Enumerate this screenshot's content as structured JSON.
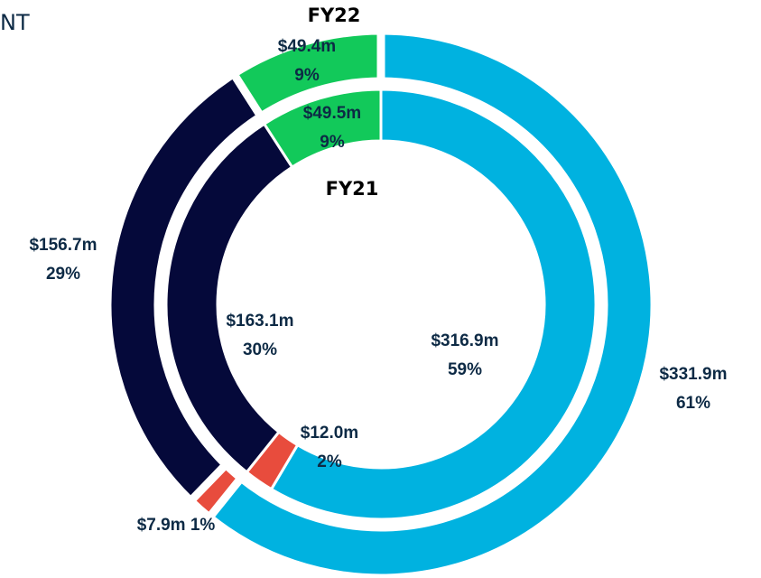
{
  "chart_data": {
    "type": "donut",
    "title": "NT",
    "colors": [
      "#00b2e0",
      "#e84c3d",
      "#05093a",
      "#12c95a"
    ],
    "series": [
      {
        "name": "FY22",
        "values": [
          331.9,
          7.9,
          156.7,
          49.4
        ],
        "value_labels": [
          "$331.9m",
          "$7.9m",
          "$156.7m",
          "$49.4m"
        ],
        "percents": [
          61,
          1,
          29,
          9
        ],
        "percent_labels": [
          "61%",
          "1%",
          "29%",
          "9%"
        ]
      },
      {
        "name": "FY21",
        "values": [
          316.9,
          12.0,
          163.1,
          49.5
        ],
        "value_labels": [
          "$316.9m",
          "$12.0m",
          "$163.1m",
          "$49.5m"
        ],
        "percents": [
          59,
          2,
          30,
          9
        ],
        "percent_labels": [
          "59%",
          "2%",
          "30%",
          "9%"
        ]
      }
    ]
  }
}
